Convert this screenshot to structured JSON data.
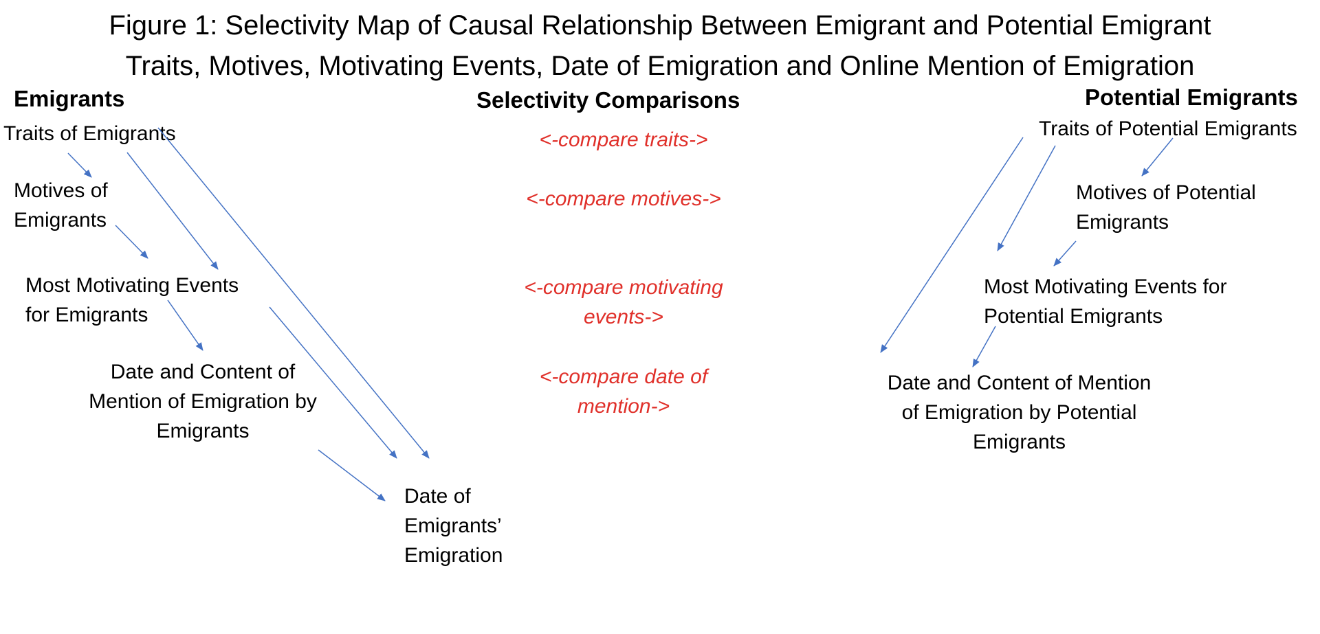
{
  "title": {
    "line1": "Figure 1: Selectivity Map of Causal Relationship Between Emigrant and Potential Emigrant",
    "line2": "Traits, Motives, Motivating Events, Date of Emigration and Online Mention of Emigration"
  },
  "headers": {
    "emigrants": "Emigrants",
    "comparisons": "Selectivity Comparisons",
    "potential": "Potential Emigrants"
  },
  "emigrants": {
    "traits": "Traits of Emigrants",
    "motives": [
      "Motives of",
      "Emigrants"
    ],
    "events": [
      "Most Motivating Events",
      "for Emigrants"
    ],
    "mention": [
      "Date and Content of",
      "Mention of Emigration by",
      "Emigrants"
    ],
    "date": [
      "Date of",
      "Emigrants’",
      "Emigration"
    ]
  },
  "comparisons": {
    "traits": [
      "<-compare traits->"
    ],
    "motives": [
      "<-compare motives->"
    ],
    "events": [
      "<-compare motivating",
      "events->"
    ],
    "mention": [
      "<-compare date of",
      "mention->"
    ]
  },
  "potential": {
    "traits": "Traits of Potential Emigrants",
    "motives": [
      "Motives of Potential",
      "Emigrants"
    ],
    "events": [
      "Most Motivating Events for",
      "Potential Emigrants"
    ],
    "mention": [
      "Date and Content of Mention",
      "of Emigration by Potential",
      "Emigrants"
    ]
  },
  "colors": {
    "arrow": "#4472c4",
    "compare_text": "#e0302a"
  }
}
